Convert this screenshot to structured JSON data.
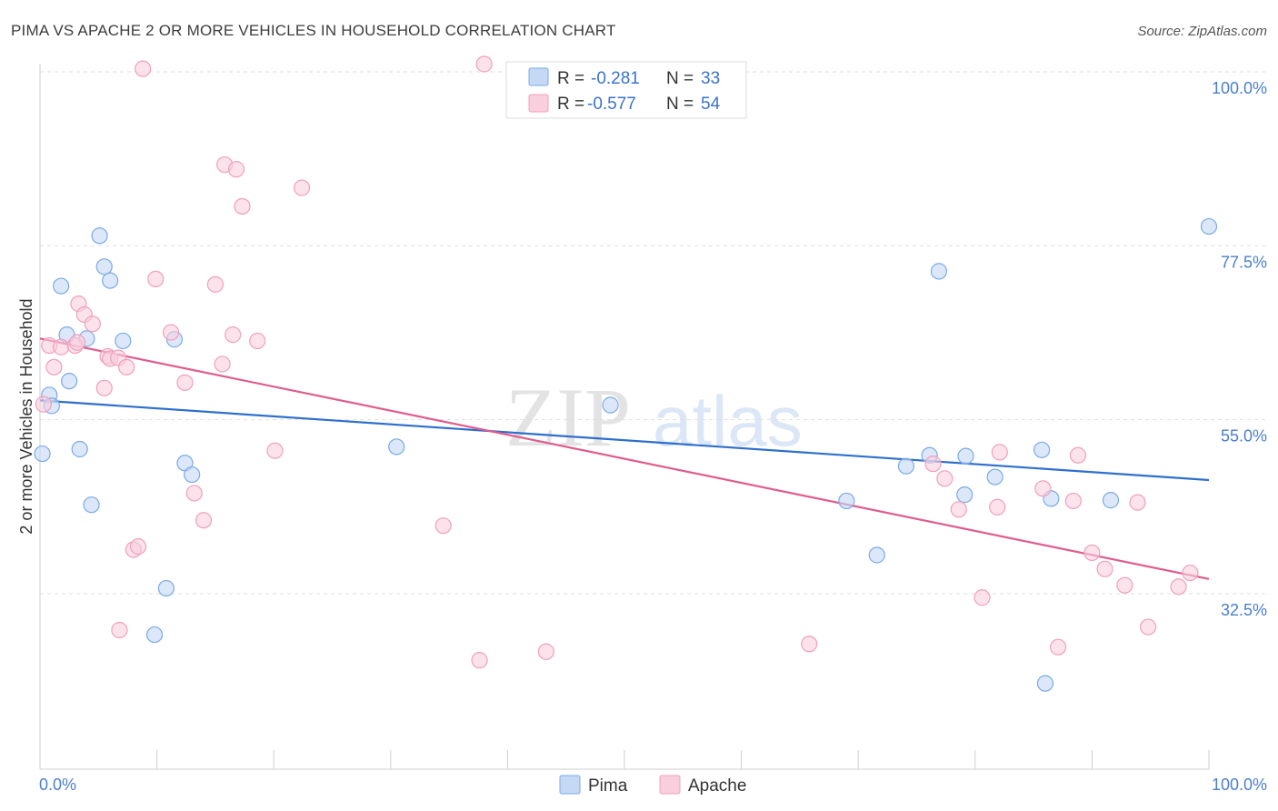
{
  "chart_data": {
    "type": "scatter",
    "title": "PIMA VS APACHE 2 OR MORE VEHICLES IN HOUSEHOLD CORRELATION CHART",
    "source": "Source: ZipAtlas.com",
    "xlabel": "",
    "ylabel": "2 or more Vehicles in Household",
    "xlim": [
      0,
      100
    ],
    "ylim": [
      12,
      103
    ],
    "x_tick_labels": [
      "0.0%",
      "100.0%"
    ],
    "y_ticks": [
      {
        "value": 100.0,
        "label": "100.0%"
      },
      {
        "value": 77.5,
        "label": "77.5%"
      },
      {
        "value": 55.0,
        "label": "55.0%"
      },
      {
        "value": 32.5,
        "label": "32.5%"
      }
    ],
    "grid": "horizontal-dashed",
    "legend_position": "top-center",
    "watermark": "ZIPatlas",
    "stats": [
      {
        "r_label": "R =",
        "r_value": "-0.281",
        "n_label": "N =",
        "n_value": "33"
      },
      {
        "r_label": "R =",
        "r_value": "-0.577",
        "n_label": "N =",
        "n_value": "54"
      }
    ],
    "series": [
      {
        "name": "Pima",
        "color": "#7aaae8",
        "fill": "#c5d9f5",
        "line_color": "#2f6fcd",
        "trend": {
          "x0": 0,
          "y0": 57.5,
          "x1": 100,
          "y1": 47.2
        },
        "points": [
          [
            0.2,
            50.6
          ],
          [
            0.8,
            58.2
          ],
          [
            1.0,
            56.8
          ],
          [
            1.8,
            72.3
          ],
          [
            2.3,
            66.0
          ],
          [
            2.5,
            60.0
          ],
          [
            3.4,
            51.2
          ],
          [
            4.0,
            65.5
          ],
          [
            4.4,
            44.0
          ],
          [
            5.1,
            78.8
          ],
          [
            5.5,
            74.8
          ],
          [
            6.0,
            73.0
          ],
          [
            7.1,
            65.2
          ],
          [
            9.8,
            27.2
          ],
          [
            10.8,
            33.2
          ],
          [
            12.4,
            49.4
          ],
          [
            13.0,
            47.9
          ],
          [
            11.5,
            65.4
          ],
          [
            30.5,
            51.5
          ],
          [
            48.8,
            56.9
          ],
          [
            69.0,
            44.5
          ],
          [
            71.6,
            37.5
          ],
          [
            74.1,
            49.0
          ],
          [
            76.1,
            50.4
          ],
          [
            76.9,
            74.2
          ],
          [
            79.1,
            45.3
          ],
          [
            79.2,
            50.3
          ],
          [
            81.7,
            47.6
          ],
          [
            85.7,
            51.1
          ],
          [
            86.0,
            20.9
          ],
          [
            86.5,
            44.8
          ],
          [
            91.6,
            44.6
          ],
          [
            100.0,
            80.0
          ]
        ]
      },
      {
        "name": "Apache",
        "color": "#f0a0bc",
        "fill": "#f9cfdd",
        "line_color": "#e05c8d",
        "trend": {
          "x0": 0,
          "y0": 65.5,
          "x1": 100,
          "y1": 34.4
        },
        "points": [
          [
            0.3,
            57.0
          ],
          [
            0.8,
            64.6
          ],
          [
            1.2,
            61.8
          ],
          [
            1.8,
            64.4
          ],
          [
            3.0,
            64.6
          ],
          [
            3.2,
            65.0
          ],
          [
            3.3,
            70.0
          ],
          [
            3.8,
            68.6
          ],
          [
            4.5,
            67.4
          ],
          [
            5.5,
            59.1
          ],
          [
            5.8,
            63.2
          ],
          [
            6.0,
            62.9
          ],
          [
            6.7,
            63.0
          ],
          [
            7.4,
            61.8
          ],
          [
            6.8,
            27.8
          ],
          [
            8.0,
            38.2
          ],
          [
            8.4,
            38.6
          ],
          [
            8.8,
            100.4
          ],
          [
            9.9,
            73.2
          ],
          [
            11.2,
            66.3
          ],
          [
            12.4,
            59.8
          ],
          [
            13.2,
            45.5
          ],
          [
            14.0,
            42.0
          ],
          [
            15.0,
            72.5
          ],
          [
            15.6,
            62.2
          ],
          [
            15.8,
            88.0
          ],
          [
            16.5,
            66.0
          ],
          [
            16.8,
            87.4
          ],
          [
            17.3,
            82.6
          ],
          [
            18.6,
            65.2
          ],
          [
            20.1,
            51.0
          ],
          [
            22.4,
            85.0
          ],
          [
            34.5,
            41.3
          ],
          [
            37.6,
            23.9
          ],
          [
            38.0,
            101.0
          ],
          [
            43.3,
            25.0
          ],
          [
            65.8,
            26.0
          ],
          [
            76.4,
            49.3
          ],
          [
            77.4,
            47.4
          ],
          [
            78.6,
            43.4
          ],
          [
            80.6,
            32.0
          ],
          [
            81.9,
            43.7
          ],
          [
            82.1,
            50.8
          ],
          [
            85.8,
            46.1
          ],
          [
            87.1,
            25.6
          ],
          [
            88.4,
            44.5
          ],
          [
            88.8,
            50.4
          ],
          [
            90.0,
            37.8
          ],
          [
            91.1,
            35.7
          ],
          [
            92.8,
            33.6
          ],
          [
            93.9,
            44.3
          ],
          [
            94.8,
            28.2
          ],
          [
            97.4,
            33.4
          ],
          [
            98.4,
            35.2
          ]
        ]
      }
    ]
  }
}
